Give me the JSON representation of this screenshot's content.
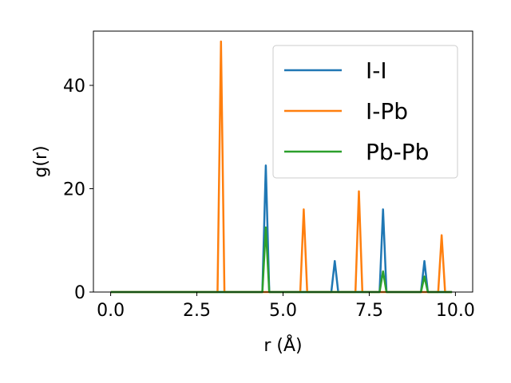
{
  "chart_data": {
    "type": "line",
    "xlabel": "r (Å)",
    "ylabel": "g(r)",
    "xlim": [
      -0.5,
      10.5
    ],
    "ylim": [
      0,
      50.5
    ],
    "xticks": [
      0.0,
      2.5,
      5.0,
      7.5,
      10.0
    ],
    "xtick_labels": [
      "0.0",
      "2.5",
      "5.0",
      "7.5",
      "10.0"
    ],
    "yticks": [
      0,
      20,
      40
    ],
    "ytick_labels": [
      "0",
      "20",
      "40"
    ],
    "grid": false,
    "legend_position": "top-right",
    "series": [
      {
        "name": "I-I",
        "color": "#1f77b4",
        "x": [
          0.0,
          4.4,
          4.5,
          4.6,
          6.4,
          6.5,
          6.6,
          7.8,
          7.9,
          8.0,
          9.0,
          9.1,
          9.2,
          9.9
        ],
        "y": [
          0,
          0,
          24.5,
          0,
          0,
          6,
          0,
          0,
          16,
          0,
          0,
          6,
          0,
          0
        ]
      },
      {
        "name": "I-Pb",
        "color": "#ff7f0e",
        "x": [
          0.0,
          3.1,
          3.2,
          3.3,
          5.5,
          5.6,
          5.7,
          7.1,
          7.2,
          7.3,
          9.5,
          9.6,
          9.7,
          9.9
        ],
        "y": [
          0,
          0,
          48.5,
          0,
          0,
          16,
          0,
          0,
          19.5,
          0,
          0,
          11,
          0,
          0
        ]
      },
      {
        "name": "Pb-Pb",
        "color": "#2ca02c",
        "x": [
          0.0,
          4.4,
          4.5,
          4.6,
          7.8,
          7.9,
          8.0,
          9.0,
          9.1,
          9.2,
          9.9
        ],
        "y": [
          0,
          0,
          12.5,
          0,
          0,
          4,
          0,
          0,
          3,
          0,
          0
        ]
      }
    ]
  }
}
